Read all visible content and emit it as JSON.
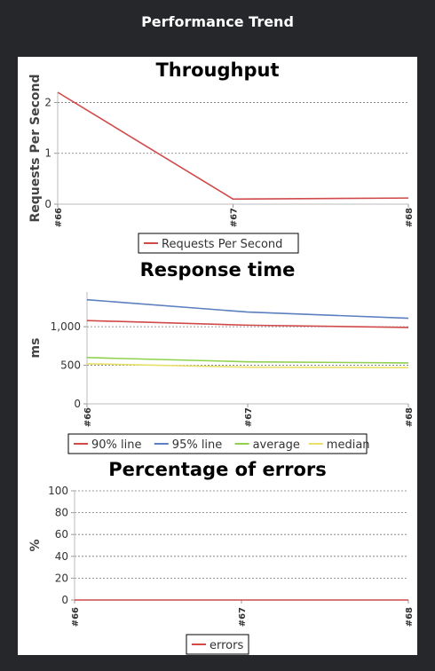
{
  "panel": {
    "title": "Performance Trend"
  },
  "chart_data": [
    {
      "type": "line",
      "title": "Throughput",
      "xlabel": "",
      "ylabel": "Requests Per Second",
      "categories": [
        "#66",
        "#67",
        "#68"
      ],
      "ylim": [
        0,
        2.2
      ],
      "yticks": [
        0,
        1,
        2
      ],
      "ytick_labels": [
        "0",
        "1",
        "2"
      ],
      "grid": true,
      "legend": "bottom",
      "series": [
        {
          "name": "Requests Per Second",
          "color": "#d04a4a",
          "values": [
            2.2,
            0.1,
            0.12
          ]
        }
      ]
    },
    {
      "type": "line",
      "title": "Response time",
      "xlabel": "",
      "ylabel": "ms",
      "categories": [
        "#66",
        "#67",
        "#68"
      ],
      "ylim": [
        0,
        1450
      ],
      "yticks": [
        0,
        500,
        1000
      ],
      "ytick_labels": [
        "0",
        "500",
        "1,000"
      ],
      "grid": true,
      "legend": "bottom",
      "series": [
        {
          "name": "90% line",
          "color": "#d04a4a",
          "values": [
            1080,
            1020,
            990
          ]
        },
        {
          "name": "95% line",
          "color": "#5b7fbf",
          "values": [
            1350,
            1190,
            1110
          ]
        },
        {
          "name": "average",
          "color": "#8fd14f",
          "values": [
            600,
            545,
            530
          ]
        },
        {
          "name": "median",
          "color": "#e8e06a",
          "values": [
            520,
            475,
            470
          ]
        }
      ]
    },
    {
      "type": "line",
      "title": "Percentage of errors",
      "xlabel": "",
      "ylabel": "%",
      "categories": [
        "#66",
        "#67",
        "#68"
      ],
      "ylim": [
        0,
        100
      ],
      "yticks": [
        0,
        20,
        40,
        60,
        80,
        100
      ],
      "ytick_labels": [
        "0",
        "20",
        "40",
        "60",
        "80",
        "100"
      ],
      "grid": true,
      "legend": "bottom",
      "series": [
        {
          "name": "errors",
          "color": "#d04a4a",
          "values": [
            0,
            0,
            0
          ]
        }
      ]
    }
  ]
}
